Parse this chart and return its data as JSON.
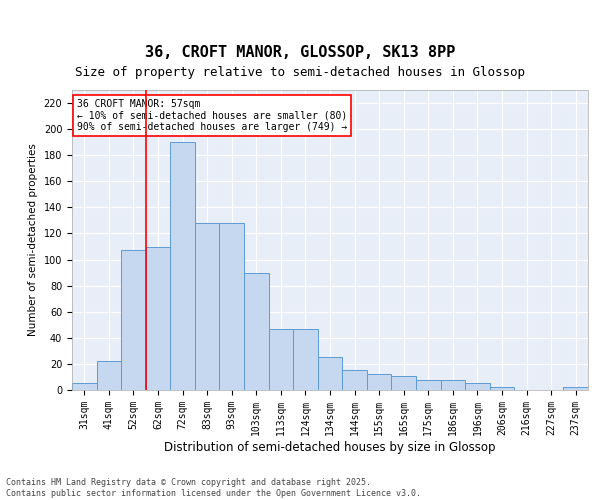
{
  "title1": "36, CROFT MANOR, GLOSSOP, SK13 8PP",
  "title2": "Size of property relative to semi-detached houses in Glossop",
  "xlabel": "Distribution of semi-detached houses by size in Glossop",
  "ylabel": "Number of semi-detached properties",
  "categories": [
    "31sqm",
    "41sqm",
    "52sqm",
    "62sqm",
    "72sqm",
    "83sqm",
    "93sqm",
    "103sqm",
    "113sqm",
    "124sqm",
    "134sqm",
    "144sqm",
    "155sqm",
    "165sqm",
    "175sqm",
    "186sqm",
    "196sqm",
    "206sqm",
    "216sqm",
    "227sqm",
    "237sqm"
  ],
  "values": [
    5,
    22,
    107,
    110,
    190,
    128,
    128,
    90,
    47,
    47,
    25,
    15,
    12,
    11,
    8,
    8,
    5,
    2,
    0,
    0,
    2
  ],
  "bar_color": "#c5d8f0",
  "bar_edge_color": "#5b9bd5",
  "vline_color": "red",
  "vline_pos": 2.5,
  "annotation_text": "36 CROFT MANOR: 57sqm\n← 10% of semi-detached houses are smaller (80)\n90% of semi-detached houses are larger (749) →",
  "ylim": [
    0,
    230
  ],
  "yticks": [
    0,
    20,
    40,
    60,
    80,
    100,
    120,
    140,
    160,
    180,
    200,
    220
  ],
  "background_color": "#e8eef8",
  "footer_text": "Contains HM Land Registry data © Crown copyright and database right 2025.\nContains public sector information licensed under the Open Government Licence v3.0.",
  "title1_fontsize": 11,
  "title2_fontsize": 9,
  "xlabel_fontsize": 8.5,
  "ylabel_fontsize": 7.5,
  "tick_fontsize": 7,
  "annotation_fontsize": 7,
  "footer_fontsize": 6
}
